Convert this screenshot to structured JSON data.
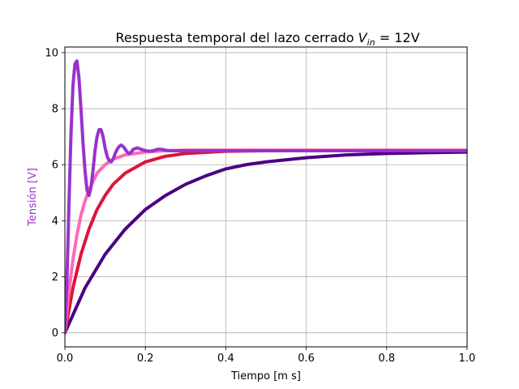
{
  "chart_data": {
    "type": "line",
    "title": {
      "main": "Respuesta temporal del lazo cerrado ",
      "math_var": "V",
      "math_sub": "in",
      "math_rest": " = 12V"
    },
    "xlabel": "Tiempo [m s]",
    "ylabel": "Tensión [V]",
    "ylabel_color": "#9932CC",
    "xlim": [
      0,
      1
    ],
    "ylim": [
      -0.5,
      10.2
    ],
    "xticks": [
      0,
      0.2,
      0.4,
      0.6,
      0.8,
      1
    ],
    "xtick_labels": [
      "0.0",
      "0.2",
      "0.4",
      "0.6",
      "0.8",
      "1.0"
    ],
    "yticks": [
      0,
      2,
      4,
      6,
      8,
      10
    ],
    "ytick_labels": [
      "0",
      "2",
      "4",
      "6",
      "8",
      "10"
    ],
    "grid": true,
    "legend": "none",
    "series": [
      {
        "color": "#4B0082",
        "x": [
          0,
          0.05,
          0.1,
          0.15,
          0.2,
          0.25,
          0.3,
          0.35,
          0.4,
          0.45,
          0.5,
          0.6,
          0.7,
          0.8,
          0.9,
          1.0
        ],
        "values": [
          0,
          1.6,
          2.8,
          3.7,
          4.4,
          4.9,
          5.3,
          5.6,
          5.85,
          6.0,
          6.1,
          6.25,
          6.35,
          6.4,
          6.43,
          6.45
        ]
      },
      {
        "color": "#DC143C",
        "x": [
          0,
          0.02,
          0.04,
          0.06,
          0.08,
          0.1,
          0.12,
          0.15,
          0.2,
          0.25,
          0.3,
          0.4,
          0.5,
          0.7,
          1.0
        ],
        "values": [
          0,
          1.6,
          2.8,
          3.7,
          4.4,
          4.9,
          5.3,
          5.7,
          6.1,
          6.3,
          6.4,
          6.48,
          6.5,
          6.5,
          6.5
        ]
      },
      {
        "color": "#FF69B4",
        "x": [
          0,
          0.01,
          0.02,
          0.03,
          0.04,
          0.05,
          0.06,
          0.08,
          0.1,
          0.12,
          0.15,
          0.2,
          0.25,
          0.3,
          0.4,
          1.0
        ],
        "values": [
          0,
          1.5,
          2.6,
          3.5,
          4.2,
          4.7,
          5.1,
          5.7,
          6.0,
          6.2,
          6.35,
          6.45,
          6.5,
          6.52,
          6.52,
          6.52
        ]
      },
      {
        "color": "#9932CC",
        "x": [
          0,
          0.005,
          0.01,
          0.015,
          0.02,
          0.025,
          0.03,
          0.035,
          0.04,
          0.045,
          0.05,
          0.055,
          0.06,
          0.065,
          0.07,
          0.075,
          0.08,
          0.085,
          0.09,
          0.095,
          0.1,
          0.105,
          0.11,
          0.115,
          0.12,
          0.125,
          0.13,
          0.135,
          0.14,
          0.145,
          0.15,
          0.155,
          0.16,
          0.165,
          0.17,
          0.18,
          0.19,
          0.2,
          0.21,
          0.22,
          0.23,
          0.24,
          0.25,
          0.26,
          0.28,
          0.3,
          0.35,
          0.4,
          1.0
        ],
        "values": [
          0,
          1.8,
          4.5,
          7.0,
          8.8,
          9.6,
          9.7,
          9.1,
          8.0,
          6.8,
          5.8,
          5.1,
          4.9,
          5.2,
          5.8,
          6.5,
          7.0,
          7.25,
          7.25,
          7.0,
          6.6,
          6.3,
          6.15,
          6.1,
          6.2,
          6.4,
          6.55,
          6.65,
          6.7,
          6.65,
          6.55,
          6.45,
          6.4,
          6.45,
          6.55,
          6.6,
          6.55,
          6.5,
          6.48,
          6.5,
          6.55,
          6.55,
          6.52,
          6.5,
          6.5,
          6.5,
          6.5,
          6.5,
          6.5
        ]
      }
    ]
  }
}
